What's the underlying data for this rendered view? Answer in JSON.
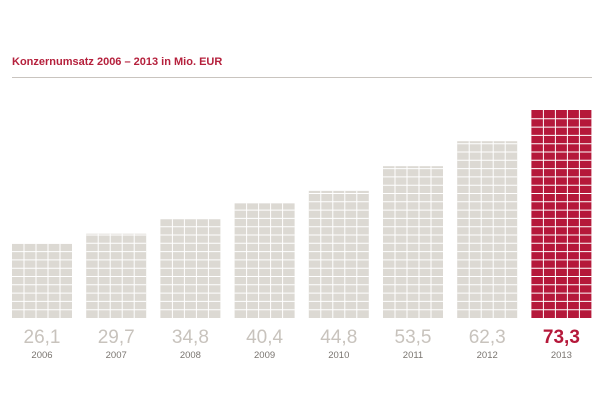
{
  "title": "Konzernumsatz 2006 – 2013 in Mio. EUR",
  "colors": {
    "bar": "#dcd9d3",
    "bar_highlight": "#b5183a",
    "grid_line": "#ffffff",
    "value_text": "#c8c3bd",
    "value_text_highlight": "#b5183a",
    "title": "#b5203c"
  },
  "chart_data": {
    "type": "bar",
    "title": "Konzernumsatz 2006 – 2013 in Mio. EUR",
    "categories": [
      "2006",
      "2007",
      "2008",
      "2009",
      "2010",
      "2011",
      "2012",
      "2013"
    ],
    "values": [
      26.1,
      29.7,
      34.8,
      40.4,
      44.8,
      53.5,
      62.3,
      73.3
    ],
    "value_labels": [
      "26,1",
      "29,7",
      "34,8",
      "40,4",
      "44,8",
      "53,5",
      "62,3",
      "73,3"
    ],
    "highlight_index": 7,
    "xlabel": "",
    "ylabel": "",
    "ylim": [
      0,
      73.3
    ],
    "grid": false
  }
}
